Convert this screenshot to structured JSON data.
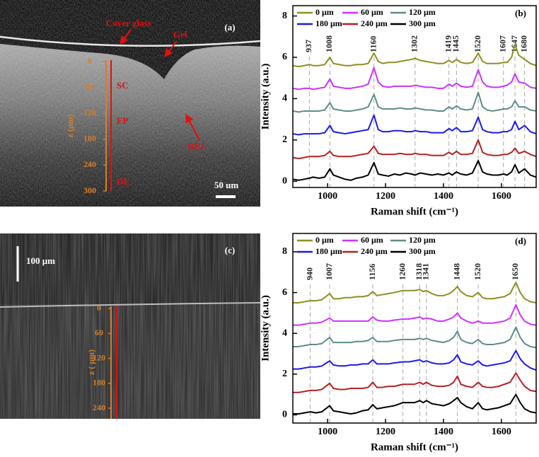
{
  "images": [
    {
      "panel_label": "(a)",
      "cover_glass": "Cover glass",
      "gel": "Gel",
      "depth_ticks": [
        0,
        60,
        120,
        180,
        240,
        300
      ],
      "depth_label": "z (μm)",
      "layers": [
        "SC",
        "EP",
        "DE"
      ],
      "junction": "DEJ",
      "scale_bar": "50 um"
    },
    {
      "panel_label": "(c)",
      "scale_bar": "100 μm",
      "depth_ticks": [
        0,
        60,
        120,
        180,
        240
      ],
      "depth_label": "z ( μm)"
    }
  ],
  "chart_data": [
    {
      "type": "line",
      "panel_label": "(b)",
      "xlabel": "Raman shift (cm⁻¹)",
      "ylabel": "Intensity (a.u.)",
      "xlim": [
        880,
        1720
      ],
      "ylim": [
        -0.3,
        8.5
      ],
      "xticks": [
        1000,
        1200,
        1400,
        1600
      ],
      "yticks": [
        0,
        2,
        4,
        6,
        8
      ],
      "legend_loc": "upper left",
      "peaks": [
        937,
        1008,
        1160,
        1302,
        1419,
        1445,
        1520,
        1607,
        1647,
        1680
      ],
      "x": [
        880,
        900,
        920,
        937,
        950,
        970,
        990,
        1008,
        1020,
        1040,
        1060,
        1080,
        1100,
        1120,
        1140,
        1160,
        1175,
        1190,
        1210,
        1230,
        1250,
        1270,
        1290,
        1302,
        1320,
        1340,
        1360,
        1380,
        1400,
        1419,
        1430,
        1445,
        1460,
        1480,
        1500,
        1520,
        1535,
        1550,
        1570,
        1590,
        1607,
        1620,
        1635,
        1647,
        1660,
        1680,
        1700,
        1720
      ],
      "series": [
        {
          "name": "0 μm",
          "color": "#8f8f22",
          "values": [
            5.6,
            5.55,
            5.6,
            5.65,
            5.6,
            5.6,
            5.65,
            6.0,
            5.7,
            5.65,
            5.6,
            5.6,
            5.65,
            5.65,
            5.7,
            6.2,
            5.8,
            5.7,
            5.75,
            5.75,
            5.8,
            5.85,
            5.9,
            5.95,
            5.85,
            5.8,
            5.75,
            5.7,
            5.7,
            5.85,
            5.75,
            5.9,
            5.75,
            5.7,
            5.75,
            6.2,
            5.8,
            5.7,
            5.7,
            5.7,
            5.75,
            5.75,
            6.0,
            6.6,
            6.1,
            5.9,
            5.7,
            5.6
          ]
        },
        {
          "name": "60 μm",
          "color": "#cc33ff",
          "values": [
            4.5,
            4.45,
            4.5,
            4.5,
            4.45,
            4.5,
            4.55,
            4.95,
            4.6,
            4.55,
            4.5,
            4.5,
            4.55,
            4.6,
            4.7,
            5.5,
            4.8,
            4.6,
            4.55,
            4.6,
            4.6,
            4.6,
            4.6,
            4.65,
            4.6,
            4.55,
            4.55,
            4.5,
            4.5,
            4.7,
            4.6,
            4.75,
            4.6,
            4.55,
            4.6,
            5.4,
            4.8,
            4.6,
            4.55,
            4.55,
            4.6,
            4.65,
            4.8,
            5.2,
            4.8,
            4.75,
            4.55,
            4.5
          ]
        },
        {
          "name": "120 μm",
          "color": "#5f8b8b",
          "values": [
            3.4,
            3.35,
            3.4,
            3.4,
            3.4,
            3.4,
            3.45,
            3.8,
            3.5,
            3.45,
            3.4,
            3.4,
            3.45,
            3.5,
            3.6,
            4.2,
            3.6,
            3.5,
            3.5,
            3.5,
            3.55,
            3.5,
            3.5,
            3.55,
            3.5,
            3.45,
            3.45,
            3.4,
            3.4,
            3.6,
            3.5,
            3.65,
            3.5,
            3.45,
            3.5,
            4.3,
            3.6,
            3.45,
            3.4,
            3.45,
            3.5,
            3.5,
            3.6,
            3.9,
            3.6,
            3.6,
            3.45,
            3.4
          ]
        },
        {
          "name": "180 μm",
          "color": "#1a1aee",
          "values": [
            2.3,
            2.25,
            2.3,
            2.3,
            2.3,
            2.3,
            2.35,
            2.7,
            2.4,
            2.35,
            2.3,
            2.35,
            2.4,
            2.45,
            2.5,
            3.2,
            2.5,
            2.4,
            2.4,
            2.45,
            2.45,
            2.4,
            2.4,
            2.45,
            2.4,
            2.4,
            2.35,
            2.35,
            2.35,
            2.55,
            2.45,
            2.6,
            2.4,
            2.4,
            2.45,
            3.1,
            2.5,
            2.4,
            2.35,
            2.35,
            2.4,
            2.4,
            2.5,
            2.9,
            2.5,
            2.7,
            2.4,
            2.3
          ]
        },
        {
          "name": "240 μm",
          "color": "#b22222",
          "values": [
            1.15,
            1.1,
            1.15,
            1.2,
            1.2,
            1.2,
            1.25,
            1.45,
            1.25,
            1.2,
            1.2,
            1.2,
            1.25,
            1.3,
            1.35,
            1.7,
            1.35,
            1.3,
            1.3,
            1.3,
            1.35,
            1.3,
            1.3,
            1.35,
            1.3,
            1.3,
            1.25,
            1.25,
            1.25,
            1.4,
            1.3,
            1.45,
            1.3,
            1.3,
            1.35,
            2.0,
            1.4,
            1.3,
            1.25,
            1.25,
            1.3,
            1.3,
            1.4,
            1.6,
            1.35,
            1.45,
            1.3,
            1.2
          ]
        },
        {
          "name": "300 μm",
          "color": "#000000",
          "values": [
            0.1,
            0.05,
            0.1,
            0.15,
            0.2,
            0.15,
            0.2,
            0.6,
            0.3,
            0.2,
            0.1,
            0.05,
            0.15,
            0.2,
            0.3,
            0.9,
            0.35,
            0.3,
            0.25,
            0.35,
            0.3,
            0.4,
            0.35,
            0.3,
            0.4,
            0.35,
            0.3,
            0.35,
            0.3,
            0.4,
            0.3,
            0.45,
            0.35,
            0.3,
            0.4,
            1.0,
            0.45,
            0.35,
            0.3,
            0.3,
            0.35,
            0.3,
            0.45,
            0.8,
            0.4,
            0.6,
            0.3,
            0.2
          ]
        }
      ]
    },
    {
      "type": "line",
      "panel_label": "(d)",
      "xlabel": "Raman shift (cm⁻¹)",
      "ylabel": "Intensity (a.u.)",
      "xlim": [
        880,
        1720
      ],
      "ylim": [
        -0.4,
        8.9
      ],
      "xticks": [
        1000,
        1200,
        1400,
        1600
      ],
      "yticks": [
        0,
        2,
        4,
        6,
        8
      ],
      "legend_loc": "upper left",
      "peaks": [
        940,
        1007,
        1156,
        1260,
        1318,
        1341,
        1448,
        1520,
        1650
      ],
      "x": [
        880,
        900,
        920,
        940,
        960,
        980,
        1007,
        1020,
        1040,
        1060,
        1080,
        1100,
        1120,
        1140,
        1156,
        1170,
        1190,
        1210,
        1230,
        1260,
        1280,
        1300,
        1318,
        1330,
        1341,
        1360,
        1380,
        1400,
        1420,
        1435,
        1448,
        1460,
        1480,
        1500,
        1520,
        1535,
        1550,
        1570,
        1590,
        1610,
        1630,
        1650,
        1665,
        1680,
        1700,
        1720
      ],
      "series": [
        {
          "name": "0 μm",
          "color": "#8f8f22",
          "values": [
            5.5,
            5.5,
            5.55,
            5.6,
            5.6,
            5.65,
            5.95,
            5.7,
            5.7,
            5.75,
            5.75,
            5.8,
            5.8,
            5.85,
            6.05,
            5.85,
            5.9,
            5.95,
            6.0,
            6.1,
            6.1,
            6.1,
            6.15,
            6.05,
            6.1,
            5.95,
            5.85,
            5.85,
            5.95,
            6.1,
            6.3,
            6.05,
            5.85,
            5.8,
            6.0,
            5.75,
            5.7,
            5.7,
            5.75,
            5.8,
            5.95,
            6.5,
            6.0,
            5.7,
            5.55,
            5.5
          ]
        },
        {
          "name": "60 μm",
          "color": "#cc33ff",
          "values": [
            4.4,
            4.4,
            4.45,
            4.5,
            4.5,
            4.55,
            4.75,
            4.6,
            4.6,
            4.6,
            4.6,
            4.6,
            4.6,
            4.6,
            4.8,
            4.65,
            4.6,
            4.6,
            4.65,
            4.7,
            4.7,
            4.75,
            4.8,
            4.7,
            4.75,
            4.7,
            4.6,
            4.6,
            4.7,
            4.8,
            5.0,
            4.75,
            4.6,
            4.5,
            4.6,
            4.5,
            4.5,
            4.5,
            4.55,
            4.6,
            4.75,
            5.4,
            4.9,
            4.6,
            4.45,
            4.4
          ]
        },
        {
          "name": "120 μm",
          "color": "#5f8b8b",
          "values": [
            3.35,
            3.35,
            3.4,
            3.45,
            3.45,
            3.5,
            3.8,
            3.55,
            3.55,
            3.55,
            3.55,
            3.6,
            3.6,
            3.65,
            3.8,
            3.6,
            3.6,
            3.6,
            3.65,
            3.7,
            3.7,
            3.7,
            3.75,
            3.7,
            3.75,
            3.65,
            3.6,
            3.55,
            3.65,
            3.8,
            4.1,
            3.7,
            3.55,
            3.5,
            3.7,
            3.5,
            3.45,
            3.45,
            3.5,
            3.55,
            3.7,
            4.3,
            3.8,
            3.5,
            3.35,
            3.3
          ]
        },
        {
          "name": "180 μm",
          "color": "#1a1aee",
          "values": [
            2.25,
            2.25,
            2.3,
            2.35,
            2.35,
            2.4,
            2.65,
            2.45,
            2.4,
            2.4,
            2.45,
            2.45,
            2.5,
            2.5,
            2.7,
            2.5,
            2.5,
            2.5,
            2.55,
            2.6,
            2.6,
            2.65,
            2.7,
            2.6,
            2.65,
            2.55,
            2.5,
            2.5,
            2.55,
            2.7,
            2.95,
            2.6,
            2.5,
            2.45,
            2.65,
            2.45,
            2.4,
            2.45,
            2.5,
            2.55,
            2.65,
            3.15,
            2.75,
            2.5,
            2.3,
            2.2
          ]
        },
        {
          "name": "240 μm",
          "color": "#b22222",
          "values": [
            1.1,
            1.1,
            1.15,
            1.2,
            1.2,
            1.25,
            1.55,
            1.3,
            1.25,
            1.25,
            1.3,
            1.3,
            1.3,
            1.35,
            1.6,
            1.35,
            1.35,
            1.4,
            1.4,
            1.5,
            1.5,
            1.5,
            1.6,
            1.5,
            1.6,
            1.45,
            1.4,
            1.4,
            1.45,
            1.6,
            1.9,
            1.5,
            1.4,
            1.35,
            1.6,
            1.4,
            1.35,
            1.35,
            1.4,
            1.5,
            1.6,
            2.05,
            1.7,
            1.4,
            1.2,
            1.15
          ]
        },
        {
          "name": "300 μm",
          "color": "#000000",
          "values": [
            0.05,
            0.05,
            0.1,
            0.15,
            0.1,
            0.15,
            0.45,
            0.2,
            0.15,
            0.1,
            0.05,
            0.1,
            0.2,
            0.25,
            0.5,
            0.3,
            0.35,
            0.4,
            0.45,
            0.6,
            0.6,
            0.6,
            0.7,
            0.6,
            0.7,
            0.55,
            0.5,
            0.45,
            0.55,
            0.7,
            0.85,
            0.6,
            0.4,
            0.3,
            0.6,
            0.3,
            0.25,
            0.3,
            0.35,
            0.45,
            0.55,
            1.0,
            0.6,
            0.3,
            0.15,
            0.1
          ]
        }
      ]
    }
  ]
}
